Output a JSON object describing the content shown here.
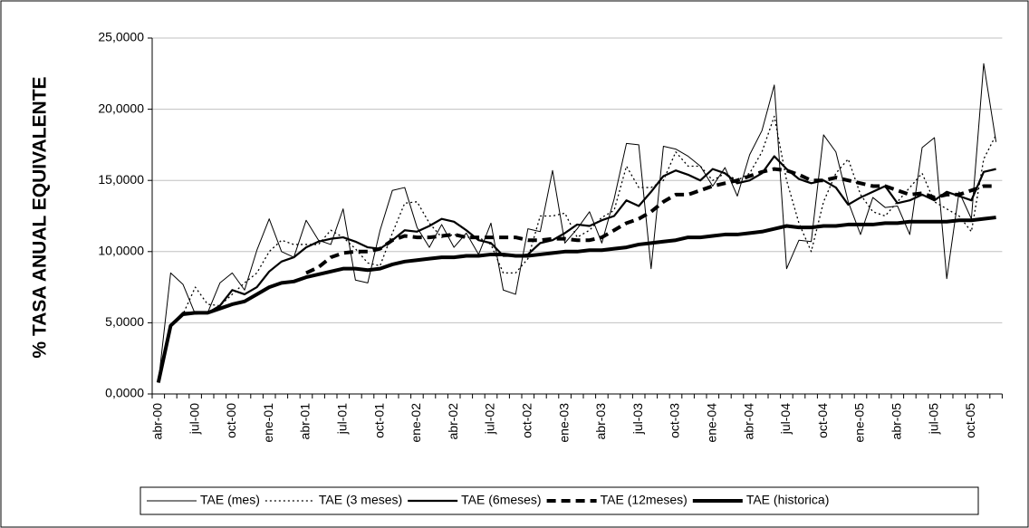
{
  "chart_data": {
    "type": "line",
    "y_label": "% TASA ANUAL EQUIVALENTE",
    "categories": [
      "abr-00",
      null,
      null,
      "jul-00",
      null,
      null,
      "oct-00",
      null,
      null,
      "ene-01",
      null,
      null,
      "abr-01",
      null,
      null,
      "jul-01",
      null,
      null,
      "oct-01",
      null,
      null,
      "ene-02",
      null,
      null,
      "abr-02",
      null,
      null,
      "jul-02",
      null,
      null,
      "oct-02",
      null,
      null,
      "ene-03",
      null,
      null,
      "abr-03",
      null,
      null,
      "jul-03",
      null,
      null,
      "oct-03",
      null,
      null,
      "ene-04",
      null,
      null,
      "abr-04",
      null,
      null,
      "jul-04",
      null,
      null,
      "oct-04",
      null,
      null,
      "ene-05",
      null,
      null,
      "abr-05",
      null,
      null,
      "jul-05",
      null,
      null,
      "oct-05",
      null,
      null
    ],
    "ylim": [
      0,
      25
    ],
    "yticks": [
      {
        "value": 0,
        "label": "0,0000"
      },
      {
        "value": 5,
        "label": "5,0000"
      },
      {
        "value": 10,
        "label": "10,0000"
      },
      {
        "value": 15,
        "label": "15,0000"
      },
      {
        "value": 20,
        "label": "20,0000"
      },
      {
        "value": 25,
        "label": "25,0000"
      }
    ],
    "grid": true,
    "legend": "bottom",
    "series": [
      {
        "name": "TAE (mes)",
        "color": "#000000",
        "style": "thin",
        "values": [
          0.8,
          8.5,
          7.7,
          5.6,
          5.7,
          7.8,
          8.5,
          7.3,
          10.1,
          12.3,
          10.0,
          9.6,
          12.2,
          10.8,
          10.5,
          13.0,
          8.0,
          7.8,
          11.5,
          14.3,
          14.5,
          11.7,
          10.3,
          11.9,
          10.3,
          11.3,
          9.8,
          12.0,
          7.3,
          7.0,
          11.6,
          11.4,
          15.7,
          10.6,
          11.6,
          12.8,
          10.6,
          13.7,
          17.6,
          17.5,
          8.8,
          17.4,
          17.2,
          16.7,
          16.0,
          14.6,
          15.9,
          13.9,
          16.8,
          18.5,
          21.7,
          8.8,
          10.8,
          10.7,
          18.2,
          17.0,
          13.5,
          11.2,
          13.8,
          13.1,
          13.2,
          11.2,
          17.3,
          18.0,
          8.1,
          14.2,
          12.3,
          23.2,
          17.7
        ]
      },
      {
        "name": "TAE (3 meses)",
        "color": "#000000",
        "style": "dotted",
        "values": [
          0.8,
          4.8,
          5.6,
          7.5,
          6.3,
          6.2,
          7.0,
          7.8,
          8.5,
          10.0,
          10.8,
          10.5,
          10.5,
          10.5,
          11.5,
          11.0,
          10.2,
          9.2,
          9.0,
          11.3,
          13.4,
          13.5,
          12.0,
          11.0,
          11.2,
          11.0,
          11.0,
          10.5,
          8.5,
          8.5,
          9.5,
          12.5,
          12.5,
          12.7,
          11.0,
          11.5,
          12.4,
          12.9,
          16.0,
          14.5,
          14.5,
          15.0,
          17.0,
          16.0,
          16.0,
          15.0,
          15.5,
          15.0,
          15.5,
          17.0,
          19.5,
          15.0,
          12.0,
          10.0,
          13.5,
          15.5,
          16.5,
          14.0,
          12.8,
          12.5,
          13.5,
          14.5,
          15.5,
          13.5,
          13.0,
          12.5,
          11.4,
          16.5,
          18.2
        ]
      },
      {
        "name": "TAE (6meses)",
        "color": "#000000",
        "style": "solid",
        "values": [
          0.8,
          4.8,
          5.7,
          5.7,
          5.7,
          6.2,
          7.3,
          7.0,
          7.5,
          8.6,
          9.3,
          9.6,
          10.3,
          10.7,
          10.9,
          11.0,
          10.7,
          10.3,
          10.2,
          10.8,
          11.5,
          11.4,
          11.8,
          12.3,
          12.1,
          11.5,
          10.8,
          10.6,
          9.7,
          9.7,
          9.8,
          10.6,
          10.8,
          11.3,
          11.9,
          11.8,
          12.2,
          12.5,
          13.6,
          13.2,
          14.2,
          15.3,
          15.7,
          15.4,
          15.0,
          15.8,
          15.5,
          14.8,
          15.0,
          15.5,
          16.7,
          15.8,
          15.1,
          14.8,
          15.0,
          14.5,
          13.3,
          13.8,
          14.2,
          14.6,
          13.4,
          13.6,
          14.0,
          13.6,
          14.2,
          13.9,
          13.6,
          15.6,
          15.8
        ]
      },
      {
        "name": "TAE (12meses)",
        "color": "#000000",
        "style": "dashed",
        "values": [
          null,
          null,
          null,
          null,
          null,
          null,
          null,
          null,
          null,
          null,
          null,
          null,
          8.5,
          8.9,
          9.6,
          9.9,
          10.0,
          10.0,
          10.2,
          10.8,
          11.1,
          11.0,
          11.0,
          11.1,
          11.2,
          11.0,
          11.0,
          11.0,
          11.0,
          11.0,
          10.8,
          10.8,
          10.9,
          10.9,
          10.8,
          10.8,
          11.0,
          11.5,
          12.0,
          12.3,
          12.8,
          13.5,
          14.0,
          14.0,
          14.3,
          14.6,
          14.8,
          15.0,
          15.3,
          15.6,
          15.8,
          15.7,
          15.4,
          15.0,
          15.0,
          15.2,
          15.0,
          14.8,
          14.6,
          14.6,
          14.3,
          14.0,
          14.1,
          13.8,
          14.0,
          14.0,
          14.3,
          14.6,
          14.6
        ]
      },
      {
        "name": "TAE (historica)",
        "color": "#000000",
        "style": "thick",
        "values": [
          0.8,
          4.8,
          5.6,
          5.7,
          5.7,
          6.0,
          6.3,
          6.5,
          7.0,
          7.5,
          7.8,
          7.9,
          8.2,
          8.4,
          8.6,
          8.8,
          8.8,
          8.7,
          8.8,
          9.1,
          9.3,
          9.4,
          9.5,
          9.6,
          9.6,
          9.7,
          9.7,
          9.8,
          9.8,
          9.7,
          9.7,
          9.8,
          9.9,
          10.0,
          10.0,
          10.1,
          10.1,
          10.2,
          10.3,
          10.5,
          10.6,
          10.7,
          10.8,
          11.0,
          11.0,
          11.1,
          11.2,
          11.2,
          11.3,
          11.4,
          11.6,
          11.8,
          11.7,
          11.7,
          11.8,
          11.8,
          11.9,
          11.9,
          11.9,
          12.0,
          12.0,
          12.1,
          12.1,
          12.1,
          12.1,
          12.2,
          12.2,
          12.3,
          12.4
        ]
      }
    ]
  }
}
